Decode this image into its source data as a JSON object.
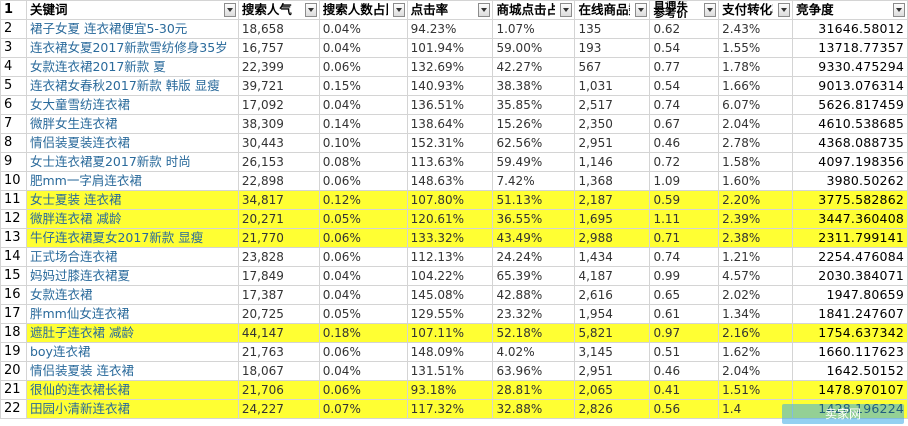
{
  "headers": [
    "关键词",
    "搜索人气",
    "搜索人数占比",
    "点击率",
    "商城点击占比",
    "在线商品数",
    "直通车参考价",
    "支付转化率",
    "竞争度"
  ],
  "rows": [
    {
      "n": "2",
      "kw": "裙子女夏 连衣裙便宜5-30元",
      "pop": "18,658",
      "ratio": "0.04%",
      "ctr": "94.23%",
      "mall": "1.07%",
      "goods": "135",
      "ztc": "0.62",
      "conv": "2.43%",
      "comp": "31646.58012",
      "hl": false
    },
    {
      "n": "3",
      "kw": "连衣裙女夏2017新款雪纺修身35岁",
      "pop": "16,757",
      "ratio": "0.04%",
      "ctr": "101.94%",
      "mall": "59.00%",
      "goods": "193",
      "ztc": "0.54",
      "conv": "1.55%",
      "comp": "13718.77357",
      "hl": false
    },
    {
      "n": "4",
      "kw": "女款连衣裙2017新款 夏",
      "pop": "22,399",
      "ratio": "0.06%",
      "ctr": "132.69%",
      "mall": "42.27%",
      "goods": "567",
      "ztc": "0.77",
      "conv": "1.78%",
      "comp": "9330.475294",
      "hl": false
    },
    {
      "n": "5",
      "kw": "连衣裙女春秋2017新款 韩版 显瘦",
      "pop": "39,721",
      "ratio": "0.15%",
      "ctr": "140.93%",
      "mall": "38.38%",
      "goods": "1,031",
      "ztc": "0.54",
      "conv": "1.66%",
      "comp": "9013.076314",
      "hl": false
    },
    {
      "n": "6",
      "kw": "女大童雪纺连衣裙",
      "pop": "17,092",
      "ratio": "0.04%",
      "ctr": "136.51%",
      "mall": "35.85%",
      "goods": "2,517",
      "ztc": "0.74",
      "conv": "6.07%",
      "comp": "5626.817459",
      "hl": false
    },
    {
      "n": "7",
      "kw": "微胖女生连衣裙",
      "pop": "38,309",
      "ratio": "0.14%",
      "ctr": "138.64%",
      "mall": "15.26%",
      "goods": "2,350",
      "ztc": "0.67",
      "conv": "2.04%",
      "comp": "4610.538685",
      "hl": false
    },
    {
      "n": "8",
      "kw": "情侣装夏装连衣裙",
      "pop": "30,443",
      "ratio": "0.10%",
      "ctr": "152.31%",
      "mall": "62.56%",
      "goods": "2,951",
      "ztc": "0.46",
      "conv": "2.78%",
      "comp": "4368.088735",
      "hl": false
    },
    {
      "n": "9",
      "kw": "女士连衣裙夏2017新款 时尚",
      "pop": "26,153",
      "ratio": "0.08%",
      "ctr": "113.63%",
      "mall": "59.49%",
      "goods": "1,146",
      "ztc": "0.72",
      "conv": "1.58%",
      "comp": "4097.198356",
      "hl": false
    },
    {
      "n": "10",
      "kw": "肥mm一字肩连衣裙",
      "pop": "22,898",
      "ratio": "0.06%",
      "ctr": "148.63%",
      "mall": "7.42%",
      "goods": "1,368",
      "ztc": "1.09",
      "conv": "1.60%",
      "comp": "3980.50262",
      "hl": false
    },
    {
      "n": "11",
      "kw": "女士夏装 连衣裙",
      "pop": "34,817",
      "ratio": "0.12%",
      "ctr": "107.80%",
      "mall": "51.13%",
      "goods": "2,187",
      "ztc": "0.59",
      "conv": "2.20%",
      "comp": "3775.582862",
      "hl": true
    },
    {
      "n": "12",
      "kw": "微胖连衣裙 减龄",
      "pop": "20,271",
      "ratio": "0.05%",
      "ctr": "120.61%",
      "mall": "36.55%",
      "goods": "1,695",
      "ztc": "1.11",
      "conv": "2.39%",
      "comp": "3447.360408",
      "hl": true
    },
    {
      "n": "13",
      "kw": "牛仔连衣裙夏女2017新款 显瘦",
      "pop": "21,770",
      "ratio": "0.06%",
      "ctr": "133.32%",
      "mall": "43.49%",
      "goods": "2,988",
      "ztc": "0.71",
      "conv": "2.38%",
      "comp": "2311.799141",
      "hl": true
    },
    {
      "n": "14",
      "kw": "正式场合连衣裙",
      "pop": "23,828",
      "ratio": "0.06%",
      "ctr": "112.13%",
      "mall": "24.24%",
      "goods": "1,434",
      "ztc": "0.74",
      "conv": "1.21%",
      "comp": "2254.476084",
      "hl": false
    },
    {
      "n": "15",
      "kw": "妈妈过膝连衣裙夏",
      "pop": "17,849",
      "ratio": "0.04%",
      "ctr": "104.22%",
      "mall": "65.39%",
      "goods": "4,187",
      "ztc": "0.99",
      "conv": "4.57%",
      "comp": "2030.384071",
      "hl": false
    },
    {
      "n": "16",
      "kw": "女款连衣裙",
      "pop": "17,387",
      "ratio": "0.04%",
      "ctr": "145.08%",
      "mall": "42.88%",
      "goods": "2,616",
      "ztc": "0.65",
      "conv": "2.02%",
      "comp": "1947.80659",
      "hl": false
    },
    {
      "n": "17",
      "kw": "胖mm仙女连衣裙",
      "pop": "20,725",
      "ratio": "0.05%",
      "ctr": "129.55%",
      "mall": "23.32%",
      "goods": "1,954",
      "ztc": "0.61",
      "conv": "1.34%",
      "comp": "1841.247607",
      "hl": false
    },
    {
      "n": "18",
      "kw": "遮肚子连衣裙 减龄",
      "pop": "44,147",
      "ratio": "0.18%",
      "ctr": "107.11%",
      "mall": "52.18%",
      "goods": "5,821",
      "ztc": "0.97",
      "conv": "2.16%",
      "comp": "1754.637342",
      "hl": true
    },
    {
      "n": "19",
      "kw": "boy连衣裙",
      "pop": "21,763",
      "ratio": "0.06%",
      "ctr": "148.09%",
      "mall": "4.02%",
      "goods": "3,145",
      "ztc": "0.51",
      "conv": "1.62%",
      "comp": "1660.117623",
      "hl": false
    },
    {
      "n": "20",
      "kw": "情侣装夏装 连衣裙",
      "pop": "18,067",
      "ratio": "0.04%",
      "ctr": "131.51%",
      "mall": "63.96%",
      "goods": "2,951",
      "ztc": "0.46",
      "conv": "2.04%",
      "comp": "1642.50152",
      "hl": false
    },
    {
      "n": "21",
      "kw": "很仙的连衣裙长裙",
      "pop": "21,706",
      "ratio": "0.06%",
      "ctr": "93.18%",
      "mall": "28.81%",
      "goods": "2,065",
      "ztc": "0.41",
      "conv": "1.51%",
      "comp": "1478.970107",
      "hl": true
    },
    {
      "n": "22",
      "kw": "田园小清新连衣裙",
      "pop": "24,227",
      "ratio": "0.07%",
      "ctr": "117.32%",
      "mall": "32.88%",
      "goods": "2,826",
      "ztc": "0.56",
      "conv": "1.4",
      "comp": "1428.196224",
      "hl": true
    }
  ],
  "watermark": "卖家网 www.maijia.com",
  "colors": {
    "highlight": "#ffff33",
    "keyword": "#2a6a9b",
    "grid": "#d4d4d4"
  }
}
